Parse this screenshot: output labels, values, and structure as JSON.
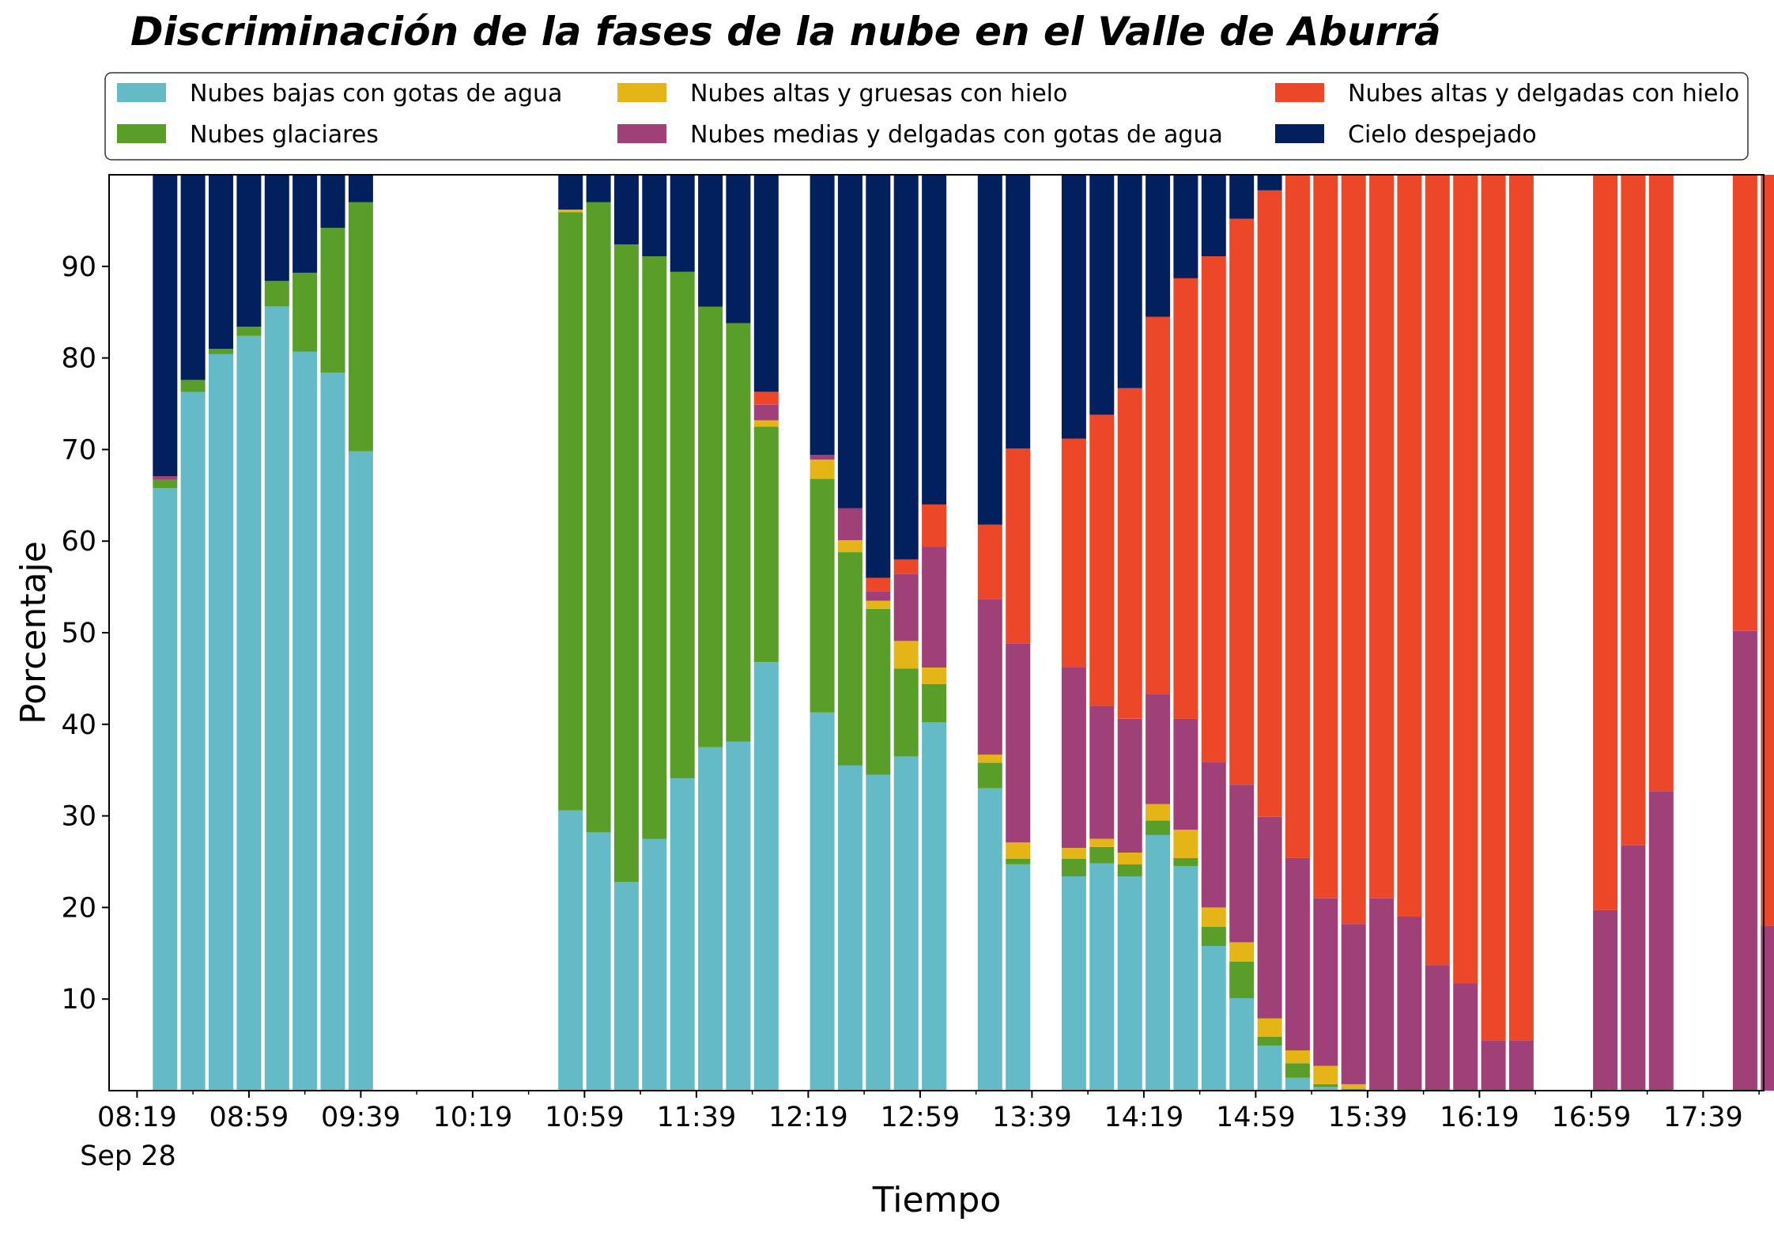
{
  "chart_data": {
    "type": "bar",
    "stacked": true,
    "title": "Discriminación de la fases de la nube en el Valle de Aburrá",
    "xlabel": "Tiempo",
    "ylabel": "Porcentaje",
    "ylim": [
      0,
      100
    ],
    "yticks": [
      10,
      20,
      30,
      40,
      50,
      60,
      70,
      80,
      90
    ],
    "xticks": [
      "08:19",
      "08:59",
      "09:39",
      "10:19",
      "10:59",
      "11:39",
      "12:19",
      "12:59",
      "13:39",
      "14:19",
      "14:59",
      "15:39",
      "16:19",
      "16:59",
      "17:39"
    ],
    "xdate_label": "Sep 28",
    "grid": false,
    "legend_position": "top",
    "x": [
      "08:29",
      "08:39",
      "08:49",
      "08:59",
      "09:09",
      "09:19",
      "09:29",
      "09:39",
      "10:54",
      "11:04",
      "11:14",
      "11:24",
      "11:34",
      "11:44",
      "11:54",
      "12:04",
      "12:24",
      "12:34",
      "12:44",
      "12:54",
      "13:04",
      "13:24",
      "13:34",
      "13:54",
      "14:04",
      "14:14",
      "14:24",
      "14:34",
      "14:44",
      "14:54",
      "15:04",
      "15:14",
      "15:24",
      "15:34",
      "15:44",
      "15:54",
      "16:04",
      "16:14",
      "16:24",
      "16:34",
      "16:44",
      "17:04",
      "17:14",
      "17:24",
      "17:54",
      "18:04"
    ],
    "series": [
      {
        "name": "Nubes bajas con gotas de agua",
        "color": "#64BBC7",
        "values": [
          65.8,
          76.3,
          80.4,
          82.4,
          85.6,
          80.7,
          78.4,
          69.8,
          30.6,
          28.2,
          22.8,
          27.5,
          34.1,
          37.5,
          38.1,
          46.8,
          41.3,
          35.5,
          34.5,
          36.5,
          40.2,
          33.0,
          24.7,
          23.4,
          24.8,
          23.4,
          27.9,
          24.5,
          15.8,
          10.1,
          4.9,
          1.4,
          0.4,
          0,
          0,
          0,
          0,
          0,
          0,
          0,
          0,
          0,
          0,
          0,
          0,
          0
        ]
      },
      {
        "name": "Nubes glaciares",
        "color": "#5A9E2A",
        "values": [
          0.9,
          1.3,
          0.6,
          1.0,
          2.8,
          8.6,
          15.8,
          27.2,
          65.3,
          68.8,
          69.6,
          63.6,
          55.3,
          48.1,
          45.7,
          25.7,
          25.5,
          23.3,
          18.1,
          9.6,
          4.2,
          2.8,
          0.6,
          1.9,
          1.8,
          1.3,
          1.6,
          0.9,
          2.1,
          4.0,
          1.0,
          1.6,
          0.3,
          0.2,
          0,
          0,
          0,
          0,
          0,
          0,
          0,
          0,
          0,
          0,
          0,
          0
        ]
      },
      {
        "name": "Nubes altas y gruesas con hielo",
        "color": "#E5B518",
        "values": [
          0,
          0,
          0,
          0,
          0,
          0,
          0,
          0,
          0.3,
          0,
          0,
          0,
          0,
          0,
          0,
          0.7,
          2.1,
          1.3,
          0.9,
          3.0,
          1.8,
          0.9,
          1.8,
          1.2,
          0.9,
          1.3,
          1.8,
          3.1,
          2.1,
          2.1,
          2.0,
          1.4,
          2.0,
          0.5,
          0,
          0,
          0,
          0,
          0,
          0,
          0,
          0,
          0,
          0,
          0,
          0
        ]
      },
      {
        "name": "Nubes medias y delgadas con gotas de agua",
        "color": "#A04078",
        "values": [
          0.4,
          0,
          0,
          0,
          0,
          0,
          0,
          0,
          0,
          0,
          0,
          0,
          0,
          0,
          0,
          1.7,
          0.5,
          3.5,
          1.0,
          7.3,
          13.2,
          17.0,
          21.7,
          19.7,
          14.5,
          14.6,
          12.0,
          12.1,
          15.9,
          17.2,
          22.0,
          21.0,
          18.3,
          17.5,
          21.0,
          19.0,
          13.7,
          11.7,
          5.5,
          5.5,
          0,
          19.7,
          26.8,
          32.7,
          50.2,
          18.0
        ]
      },
      {
        "name": "Nubes altas y delgadas con hielo",
        "color": "#EB4728",
        "values": [
          0,
          0,
          0,
          0,
          0,
          0,
          0,
          0,
          0,
          0,
          0,
          0,
          0,
          0,
          0,
          1.4,
          0,
          0,
          1.5,
          1.6,
          4.6,
          8.1,
          21.3,
          25.0,
          31.8,
          36.1,
          41.2,
          48.1,
          55.2,
          61.8,
          68.4,
          74.6,
          79.0,
          81.8,
          79.0,
          81.0,
          86.3,
          88.3,
          94.5,
          94.5,
          0,
          80.3,
          73.2,
          67.3,
          49.8,
          82.0
        ]
      },
      {
        "name": "Cielo despejado",
        "color": "#03205E",
        "values": [
          32.9,
          22.4,
          19.0,
          16.6,
          11.6,
          10.7,
          5.8,
          3.0,
          3.8,
          3.0,
          7.6,
          8.9,
          10.6,
          14.4,
          16.2,
          23.7,
          30.6,
          36.4,
          44.0,
          42.0,
          36.0,
          38.2,
          29.9,
          28.8,
          26.2,
          23.3,
          15.5,
          11.3,
          8.9,
          4.8,
          1.7,
          0,
          0,
          0,
          0,
          0,
          0,
          0,
          0,
          0,
          0,
          0,
          0,
          0,
          0,
          0
        ]
      }
    ]
  }
}
